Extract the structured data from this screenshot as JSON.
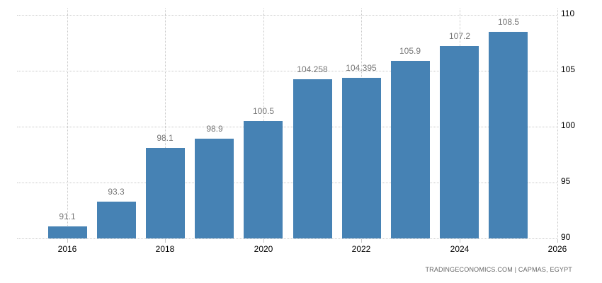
{
  "chart_data": {
    "type": "bar",
    "title": "",
    "xlabel": "",
    "ylabel": "",
    "categories": [
      "2016",
      "2017",
      "2018",
      "2019",
      "2020",
      "2021",
      "2022",
      "2023",
      "2024",
      "2025"
    ],
    "values": [
      91.1,
      93.3,
      98.1,
      98.9,
      100.5,
      104.258,
      104.395,
      105.9,
      107.2,
      108.5
    ],
    "data_labels": [
      "91.1",
      "93.3",
      "98.1",
      "98.9",
      "100.5",
      "104.258",
      "104.395",
      "105.9",
      "107.2",
      "108.5"
    ],
    "ylim": [
      90,
      110
    ],
    "y_ticks": [
      90,
      95,
      100,
      105,
      110
    ],
    "x_ticks": [
      "2016",
      "2018",
      "2020",
      "2022",
      "2024",
      "2026"
    ],
    "y_axis_position": "right",
    "grid": true,
    "bar_color": "#4682b4"
  },
  "footer": {
    "source": "TRADINGECONOMICS.COM  |  CAPMAS, EGYPT"
  }
}
